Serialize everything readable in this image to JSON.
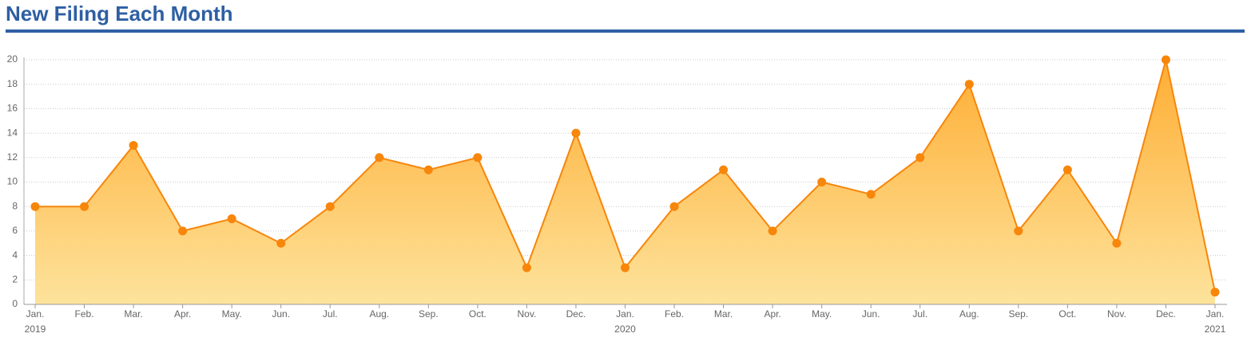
{
  "chart_data": {
    "type": "area",
    "title": "New Filing Each Month",
    "categories": [
      "Jan.",
      "Feb.",
      "Mar.",
      "Apr.",
      "May.",
      "Jun.",
      "Jul.",
      "Aug.",
      "Sep.",
      "Oct.",
      "Nov.",
      "Dec.",
      "Jan.",
      "Feb.",
      "Mar.",
      "Apr.",
      "May.",
      "Jun.",
      "Jul.",
      "Aug.",
      "Sep.",
      "Oct.",
      "Nov.",
      "Dec.",
      "Jan."
    ],
    "year_labels": [
      "2019",
      null,
      null,
      null,
      null,
      null,
      null,
      null,
      null,
      null,
      null,
      null,
      "2020",
      null,
      null,
      null,
      null,
      null,
      null,
      null,
      null,
      null,
      null,
      null,
      "2021"
    ],
    "series": [
      {
        "color": "#f7860b",
        "values": [
          8,
          8,
          13,
          6,
          7,
          5,
          8,
          12,
          11,
          12,
          3,
          14,
          3,
          8,
          11,
          6,
          10,
          9,
          12,
          18,
          6,
          11,
          5,
          20,
          1
        ]
      }
    ],
    "ylim": [
      0,
      20
    ],
    "yticks": [
      0,
      2,
      4,
      6,
      8,
      10,
      12,
      14,
      16,
      18,
      20
    ],
    "grid": true
  }
}
